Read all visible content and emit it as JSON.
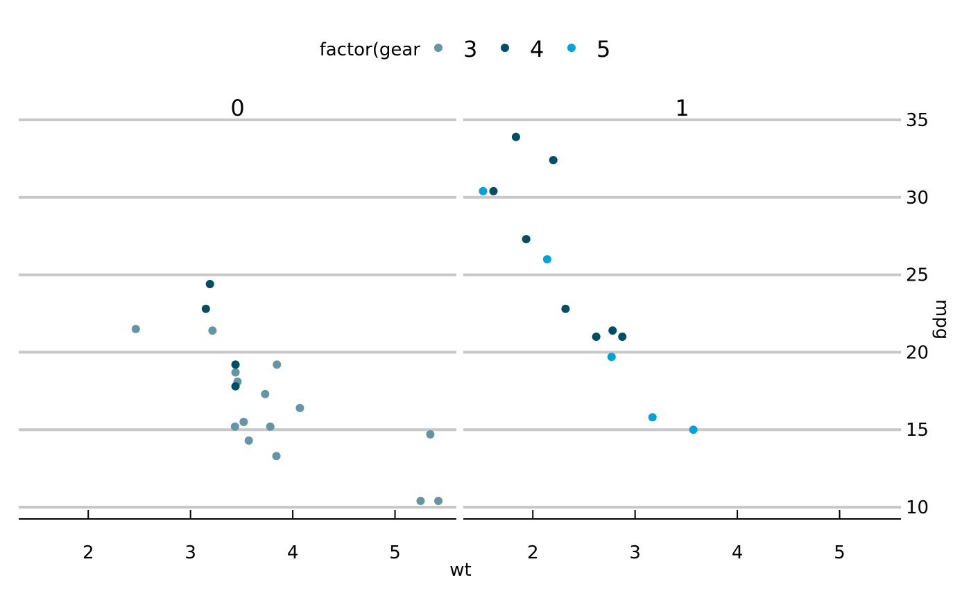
{
  "chart_data": {
    "type": "scatter",
    "xlabel": "wt",
    "ylabel": "mpg",
    "legend": {
      "title": "factor(gear",
      "placement": "top",
      "entries": [
        "3",
        "4",
        "5"
      ]
    },
    "colors": {
      "3": "#6594a5",
      "4": "#014d64",
      "5": "#01a2d9",
      "grid": "#c8c8c8",
      "axis": "#000000"
    },
    "grid": "horizontal",
    "xlim": [
      1.32,
      5.6
    ],
    "ylim": [
      9.2,
      35.6
    ],
    "x_ticks": [
      "2",
      "3",
      "4",
      "5"
    ],
    "y_ticks": [
      "10",
      "15",
      "20",
      "25",
      "30",
      "35"
    ],
    "facets": [
      {
        "label": "0",
        "series": [
          {
            "name": "3",
            "points": [
              [
                2.465,
                21.5
              ],
              [
                3.215,
                21.4
              ],
              [
                3.44,
                18.7
              ],
              [
                3.46,
                18.1
              ],
              [
                3.57,
                14.3
              ],
              [
                4.07,
                16.4
              ],
              [
                3.73,
                17.3
              ],
              [
                3.78,
                15.2
              ],
              [
                5.25,
                10.4
              ],
              [
                5.424,
                10.4
              ],
              [
                5.345,
                14.7
              ],
              [
                3.52,
                15.5
              ],
              [
                3.435,
                15.2
              ],
              [
                3.84,
                13.3
              ],
              [
                3.845,
                19.2
              ]
            ]
          },
          {
            "name": "4",
            "points": [
              [
                3.19,
                24.4
              ],
              [
                3.15,
                22.8
              ],
              [
                3.44,
                19.2
              ],
              [
                3.44,
                17.8
              ]
            ]
          }
        ]
      },
      {
        "label": "1",
        "series": [
          {
            "name": "4",
            "points": [
              [
                2.62,
                21.0
              ],
              [
                2.875,
                21.0
              ],
              [
                2.32,
                22.8
              ],
              [
                2.2,
                32.4
              ],
              [
                1.615,
                30.4
              ],
              [
                1.835,
                33.9
              ],
              [
                1.935,
                27.3
              ],
              [
                2.78,
                21.4
              ]
            ]
          },
          {
            "name": "5",
            "points": [
              [
                2.14,
                26.0
              ],
              [
                1.513,
                30.4
              ],
              [
                3.17,
                15.8
              ],
              [
                2.77,
                19.7
              ],
              [
                3.57,
                15.0
              ]
            ]
          }
        ]
      }
    ]
  }
}
